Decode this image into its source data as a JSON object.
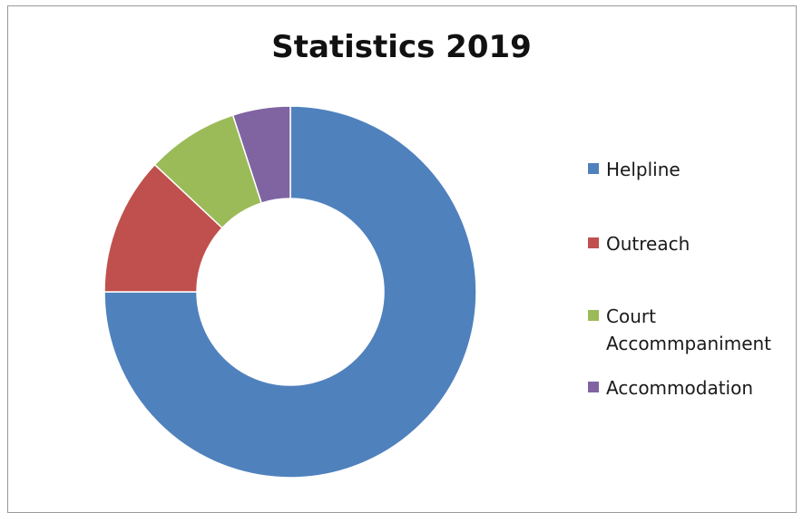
{
  "chart_data": {
    "type": "pie",
    "title": "Statistics 2019",
    "categories": [
      "Helpline",
      "Outreach",
      "Court Accommpaniment",
      "Accommodation"
    ],
    "values": [
      75,
      12,
      8,
      5
    ],
    "colors": [
      "#4f81bd",
      "#c0504d",
      "#9bbb59",
      "#8064a2"
    ],
    "legend_position": "right",
    "donut": true
  }
}
